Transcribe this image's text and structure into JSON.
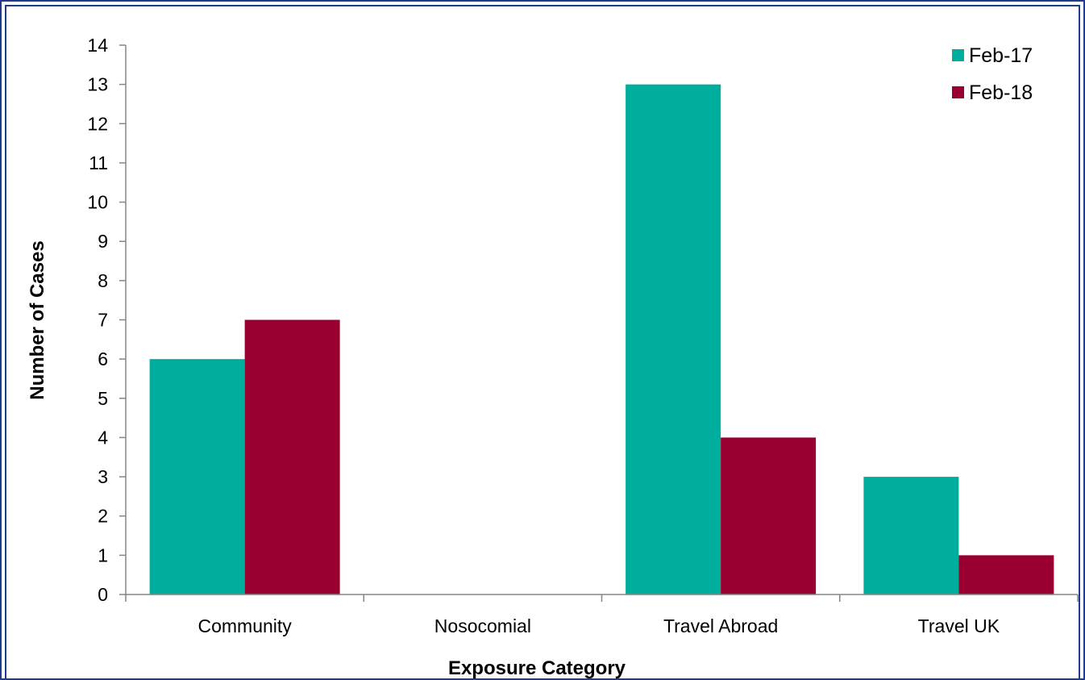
{
  "chart_data": {
    "type": "bar",
    "title": "",
    "xlabel": "Exposure Category",
    "ylabel": "Number of Cases",
    "categories": [
      "Community",
      "Nosocomial",
      "Travel Abroad",
      "Travel UK"
    ],
    "series": [
      {
        "name": "Feb-17",
        "values": [
          6,
          0,
          13,
          3
        ],
        "color": "#00ae9e"
      },
      {
        "name": "Feb-18",
        "values": [
          7,
          0,
          4,
          1
        ],
        "color": "#990030"
      }
    ],
    "ylim": [
      0,
      14
    ],
    "yticks": [
      0,
      1,
      2,
      3,
      4,
      5,
      6,
      7,
      8,
      9,
      10,
      11,
      12,
      13,
      14
    ],
    "grid": false,
    "legend": "top-right"
  }
}
